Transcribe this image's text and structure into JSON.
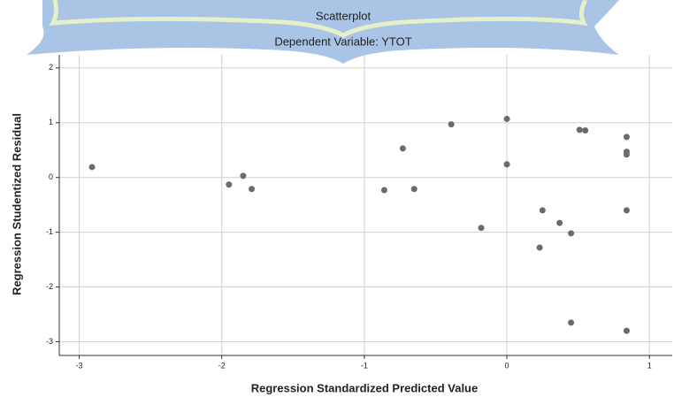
{
  "chart_data": {
    "type": "scatter",
    "title": "Scatterplot",
    "subtitle": "Dependent Variable: YTOT",
    "x_label": "Regression Standardized Predicted Value",
    "y_label": "Regression Studentized Residual",
    "x": [
      -2.91,
      -1.95,
      -1.85,
      -1.79,
      -0.86,
      -0.73,
      -0.65,
      -0.39,
      -0.18,
      0.0,
      0.0,
      0.25,
      0.23,
      0.37,
      0.45,
      0.45,
      0.51,
      0.55,
      0.84,
      0.84,
      0.84,
      0.84,
      0.84
    ],
    "values": [
      0.19,
      -0.13,
      0.03,
      -0.21,
      -0.23,
      0.53,
      -0.21,
      0.97,
      -0.92,
      1.07,
      0.24,
      -0.6,
      -1.28,
      -0.83,
      -1.02,
      -2.65,
      0.87,
      0.86,
      0.74,
      0.47,
      0.42,
      -0.6,
      -2.8
    ],
    "color": "#6b6b6b",
    "xlim": [
      -3.14,
      1.16
    ],
    "ylim": [
      -3.25,
      2.24
    ],
    "xticks": [
      -3,
      -2,
      -1,
      0,
      1
    ],
    "yticks": [
      -3,
      -2,
      -1,
      0,
      1,
      2
    ],
    "grid": true
  }
}
